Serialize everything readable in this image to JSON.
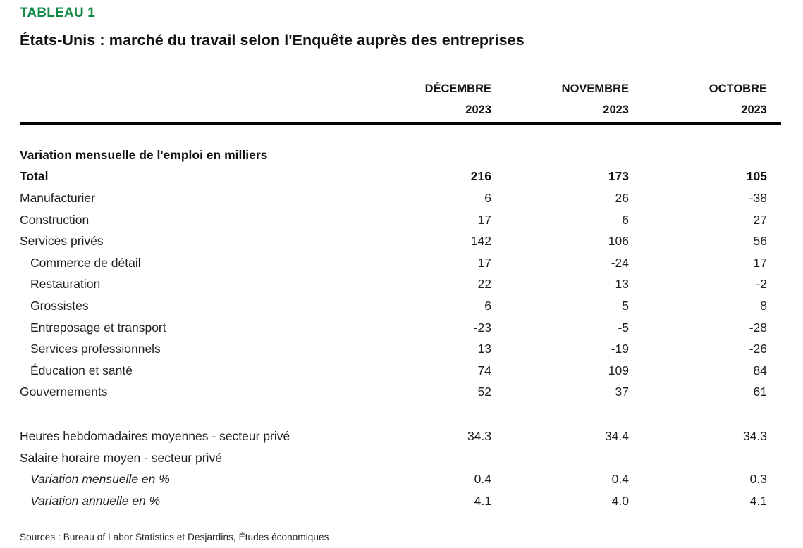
{
  "page": {
    "tag_label": "TABLEAU 1",
    "title": "États-Unis : marché du travail selon l'Enquête auprès des entreprises",
    "source": "Sources : Bureau of Labor Statistics et Desjardins, Études économiques"
  },
  "colors": {
    "accent_green": "#118a47",
    "rule_black": "#000000"
  },
  "table": {
    "columns": [
      {
        "month": "DÉCEMBRE",
        "year": "2023"
      },
      {
        "month": "NOVEMBRE",
        "year": "2023"
      },
      {
        "month": "OCTOBRE",
        "year": "2023"
      }
    ],
    "rows": [
      {
        "label": "Variation mensuelle de l'emploi en milliers",
        "values": [
          "",
          "",
          ""
        ],
        "style": "bold",
        "indent": 0
      },
      {
        "label": "Total",
        "values": [
          "216",
          "173",
          "105"
        ],
        "style": "bold",
        "indent": 0
      },
      {
        "label": "Manufacturier",
        "values": [
          "6",
          "26",
          "-38"
        ],
        "style": "normal",
        "indent": 0
      },
      {
        "label": "Construction",
        "values": [
          "17",
          "6",
          "27"
        ],
        "style": "normal",
        "indent": 0
      },
      {
        "label": "Services privés",
        "values": [
          "142",
          "106",
          "56"
        ],
        "style": "normal",
        "indent": 0
      },
      {
        "label": "Commerce de détail",
        "values": [
          "17",
          "-24",
          "17"
        ],
        "style": "normal",
        "indent": 1
      },
      {
        "label": "Restauration",
        "values": [
          "22",
          "13",
          "-2"
        ],
        "style": "normal",
        "indent": 1
      },
      {
        "label": "Grossistes",
        "values": [
          "6",
          "5",
          "8"
        ],
        "style": "normal",
        "indent": 1
      },
      {
        "label": "Entreposage et transport",
        "values": [
          "-23",
          "-5",
          "-28"
        ],
        "style": "normal",
        "indent": 1
      },
      {
        "label": "Services professionnels",
        "values": [
          "13",
          "-19",
          "-26"
        ],
        "style": "normal",
        "indent": 1
      },
      {
        "label": "Éducation et santé",
        "values": [
          "74",
          "109",
          "84"
        ],
        "style": "normal",
        "indent": 1
      },
      {
        "label": "Gouvernements",
        "values": [
          "52",
          "37",
          "61"
        ],
        "style": "normal",
        "indent": 0
      },
      {
        "label": "Heures hebdomadaires moyennes - secteur privé",
        "values": [
          "34.3",
          "34.4",
          "34.3"
        ],
        "style": "normal",
        "indent": 0
      },
      {
        "label": "Salaire horaire moyen - secteur privé",
        "values": [
          "",
          "",
          ""
        ],
        "style": "normal",
        "indent": 0
      },
      {
        "label": "Variation mensuelle en %",
        "values": [
          "0.4",
          "0.4",
          "0.3"
        ],
        "style": "italic",
        "indent": 1
      },
      {
        "label": "Variation annuelle en %",
        "values": [
          "4.1",
          "4.0",
          "4.1"
        ],
        "style": "italic",
        "indent": 1
      }
    ]
  }
}
